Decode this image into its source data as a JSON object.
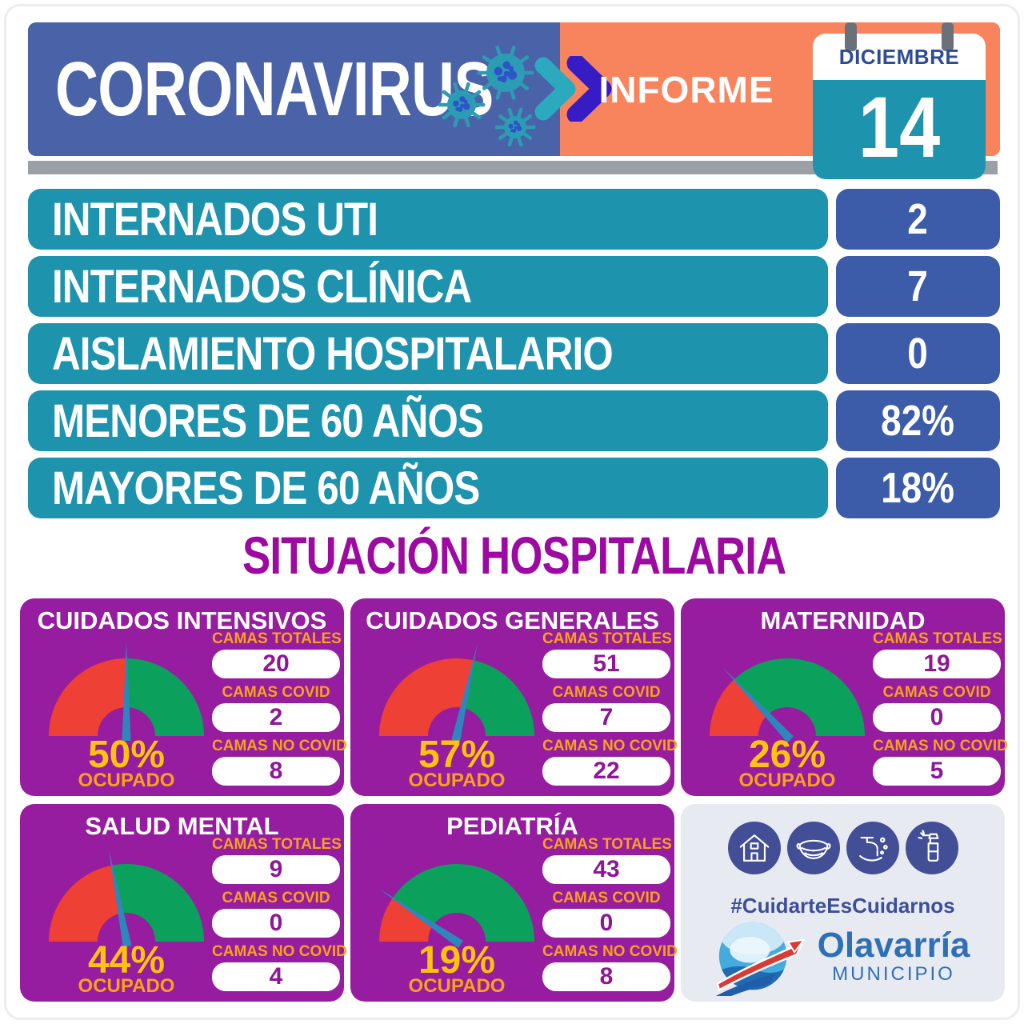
{
  "header": {
    "title": "CORONAVIRUS",
    "informe_label": "INFORME",
    "calendar_month": "DICIEMBRE",
    "calendar_day": "14"
  },
  "stat_bars": [
    {
      "label": "INTERNADOS UTI",
      "value": "2"
    },
    {
      "label": "INTERNADOS CLÍNICA",
      "value": "7"
    },
    {
      "label": "AISLAMIENTO HOSPITALARIO",
      "value": "0"
    },
    {
      "label": "MENORES DE 60 AÑOS",
      "value": "82%"
    },
    {
      "label": "MAYORES DE 60 AÑOS",
      "value": "18%"
    }
  ],
  "section_title": "SITUACIÓN HOSPITALARIA",
  "gauges": [
    {
      "title": "CUIDADOS INTENSIVOS",
      "percent": 50,
      "percent_label": "50%",
      "occupied_label": "OCUPADO",
      "fields": [
        {
          "label": "CAMAS TOTALES",
          "value": "20"
        },
        {
          "label": "CAMAS COVID",
          "value": "2"
        },
        {
          "label": "CAMAS NO COVID",
          "value": "8"
        }
      ]
    },
    {
      "title": "CUIDADOS GENERALES",
      "percent": 57,
      "percent_label": "57%",
      "occupied_label": "OCUPADO",
      "fields": [
        {
          "label": "CAMAS TOTALES",
          "value": "51"
        },
        {
          "label": "CAMAS COVID",
          "value": "7"
        },
        {
          "label": "CAMAS NO COVID",
          "value": "22"
        }
      ]
    },
    {
      "title": "MATERNIDAD",
      "percent": 26,
      "percent_label": "26%",
      "occupied_label": "OCUPADO",
      "fields": [
        {
          "label": "CAMAS TOTALES",
          "value": "19"
        },
        {
          "label": "CAMAS COVID",
          "value": "0"
        },
        {
          "label": "CAMAS NO COVID",
          "value": "5"
        }
      ]
    },
    {
      "title": "SALUD MENTAL",
      "percent": 44,
      "percent_label": "44%",
      "occupied_label": "OCUPADO",
      "fields": [
        {
          "label": "CAMAS TOTALES",
          "value": "9"
        },
        {
          "label": "CAMAS COVID",
          "value": "0"
        },
        {
          "label": "CAMAS NO COVID",
          "value": "4"
        }
      ]
    },
    {
      "title": "PEDIATRÍA",
      "percent": 19,
      "percent_label": "19%",
      "occupied_label": "OCUPADO",
      "fields": [
        {
          "label": "CAMAS TOTALES",
          "value": "43"
        },
        {
          "label": "CAMAS COVID",
          "value": "0"
        },
        {
          "label": "CAMAS NO COVID",
          "value": "8"
        }
      ]
    }
  ],
  "info_card": {
    "icons": [
      "house-icon",
      "face-mask-icon",
      "hand-washing-icon",
      "spray-bottle-icon"
    ],
    "hashtag": "#CuidarteEsCuidarnos",
    "brand_name": "Olavarría",
    "brand_subtitle": "MUNICIPIO"
  },
  "colors": {
    "header_blue": "#4a62a7",
    "header_orange": "#f8845e",
    "teal": "#1e93ae",
    "badge_blue": "#3c5ba8",
    "purple_card": "#961d9f",
    "purple_title": "#9c0aa2",
    "gauge_red": "#ee4035",
    "gauge_green": "#0ba15c",
    "needle_blue": "#2e86bd",
    "yellow_percent": "#ffc20d",
    "orange_label": "#f9a11b",
    "brand_blue": "#2f6fb5",
    "indigo_icon": "#424e96"
  },
  "chart_data": [
    {
      "type": "table",
      "title": "Resumen COVID 14 Diciembre",
      "rows": [
        [
          "INTERNADOS UTI",
          "2"
        ],
        [
          "INTERNADOS CLÍNICA",
          "7"
        ],
        [
          "AISLAMIENTO HOSPITALARIO",
          "0"
        ],
        [
          "MENORES DE 60 AÑOS",
          "82%"
        ],
        [
          "MAYORES DE 60 AÑOS",
          "18%"
        ]
      ]
    },
    {
      "type": "gauge",
      "title": "CUIDADOS INTENSIVOS",
      "percent_ocupado": 50,
      "camas_totales": 20,
      "camas_covid": 2,
      "camas_no_covid": 8,
      "range": [
        0,
        100
      ]
    },
    {
      "type": "gauge",
      "title": "CUIDADOS GENERALES",
      "percent_ocupado": 57,
      "camas_totales": 51,
      "camas_covid": 7,
      "camas_no_covid": 22,
      "range": [
        0,
        100
      ]
    },
    {
      "type": "gauge",
      "title": "MATERNIDAD",
      "percent_ocupado": 26,
      "camas_totales": 19,
      "camas_covid": 0,
      "camas_no_covid": 5,
      "range": [
        0,
        100
      ]
    },
    {
      "type": "gauge",
      "title": "SALUD MENTAL",
      "percent_ocupado": 44,
      "camas_totales": 9,
      "camas_covid": 0,
      "camas_no_covid": 4,
      "range": [
        0,
        100
      ]
    },
    {
      "type": "gauge",
      "title": "PEDIATRÍA",
      "percent_ocupado": 19,
      "camas_totales": 43,
      "camas_covid": 0,
      "camas_no_covid": 8,
      "range": [
        0,
        100
      ]
    }
  ]
}
